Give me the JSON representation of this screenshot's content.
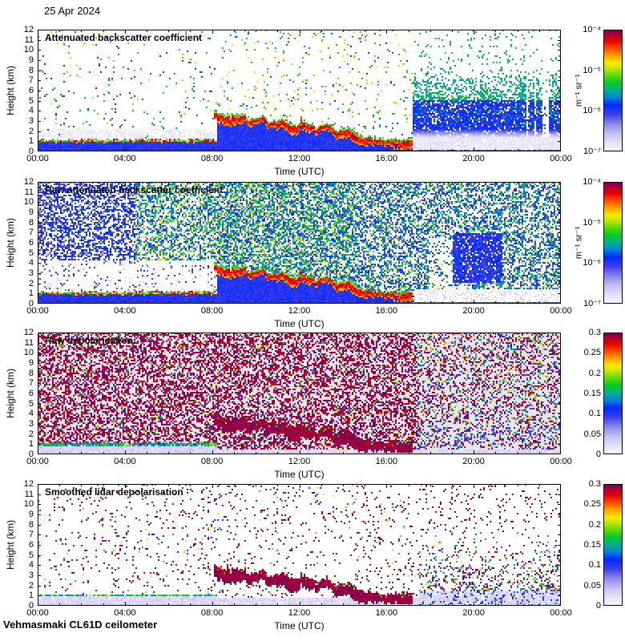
{
  "header": {
    "date_label": "25 Apr 2024"
  },
  "footer": {
    "label": "Vehmasmaki CL61D ceilometer"
  },
  "chart_data": {
    "type": "heatmap",
    "xlabel": "Time (UTC)",
    "ylabel": "Height (km)",
    "x_ticks": [
      "00:00",
      "04:00",
      "08:00",
      "12:00",
      "16:00",
      "20:00",
      "00:00"
    ],
    "x_minor_tick_hours": 1,
    "x_range_hours": [
      0,
      24
    ],
    "y_ticks": [
      0,
      1,
      2,
      3,
      4,
      5,
      6,
      7,
      8,
      9,
      10,
      11,
      12
    ],
    "y_range_km": [
      0,
      12
    ],
    "grid": false,
    "colormap": [
      [
        0.0,
        "#f8f6ff"
      ],
      [
        0.06,
        "#e8e4fa"
      ],
      [
        0.14,
        "#c6c2f2"
      ],
      [
        0.22,
        "#8e8cea"
      ],
      [
        0.3,
        "#4040e8"
      ],
      [
        0.38,
        "#0028ff"
      ],
      [
        0.44,
        "#0080e0"
      ],
      [
        0.5,
        "#00b090"
      ],
      [
        0.56,
        "#00c830"
      ],
      [
        0.62,
        "#58d800"
      ],
      [
        0.68,
        "#b8e800"
      ],
      [
        0.73,
        "#ffe800"
      ],
      [
        0.79,
        "#ffa000"
      ],
      [
        0.85,
        "#ff4800"
      ],
      [
        0.91,
        "#e80000"
      ],
      [
        0.96,
        "#b00030"
      ],
      [
        1.0,
        "#6a0060"
      ]
    ],
    "panels": [
      {
        "title": "Attenuated backscatter coefficient",
        "type": "backscatter",
        "colorbar": {
          "unit": "m⁻¹ sr⁻¹",
          "scale": "log",
          "ticks": [
            "10⁻⁴",
            "10⁻⁵",
            "10⁻⁶",
            "10⁻⁷"
          ],
          "range": [
            "1e-7",
            "1e-4"
          ]
        }
      },
      {
        "title": "Raw attenuated backscatter coefficient",
        "type": "backscatter_raw",
        "colorbar": {
          "unit": "m⁻¹ sr⁻¹",
          "scale": "log",
          "ticks": [
            "10⁻⁴",
            "10⁻⁵",
            "10⁻⁶",
            "10⁻⁷"
          ],
          "range": [
            "1e-7",
            "1e-4"
          ]
        }
      },
      {
        "title": "Raw depolarisation",
        "type": "depol_raw",
        "colorbar": {
          "scale": "linear",
          "ticks": [
            "0.3",
            "0.25",
            "0.2",
            "0.15",
            "0.1",
            "0.05",
            "0"
          ],
          "range": [
            0,
            0.3
          ]
        }
      },
      {
        "title": "Smoothed lidar depolarisation",
        "type": "depol_smooth",
        "colorbar": {
          "scale": "linear",
          "ticks": [
            "0.3",
            "0.25",
            "0.2",
            "0.15",
            "0.1",
            "0.05",
            "0"
          ],
          "range": [
            0,
            0.3
          ]
        }
      }
    ],
    "features": {
      "cloud_band": {
        "start_hour": 8.1,
        "end_hour": 17.1,
        "top_km_at_start": 3.9,
        "top_km_at_14h": 2.3,
        "top_km_at_end": 1.1,
        "description": "Liquid cloud layer descending from ~4 km at 08:00 to ~1 km by 16:00-17:00; strong (red) backscatter core with green fringe; appears as dark-purple depolarisation blob in lower panels"
      },
      "boundary_layer": {
        "top_km": 1.1,
        "until_hour": 8.2,
        "description": "Low aerosol/fog layer 0-1.1 km before 08:00 with enhanced backscatter line at its top"
      },
      "precipitation": {
        "start_hour": 17.3,
        "end_hour": 24,
        "description": "Precipitation after ~17:20: green/blue backscatter streaks up to ~8 km, multicoloured depolarisation streaks up to ~7 km, red ground return line"
      }
    }
  }
}
